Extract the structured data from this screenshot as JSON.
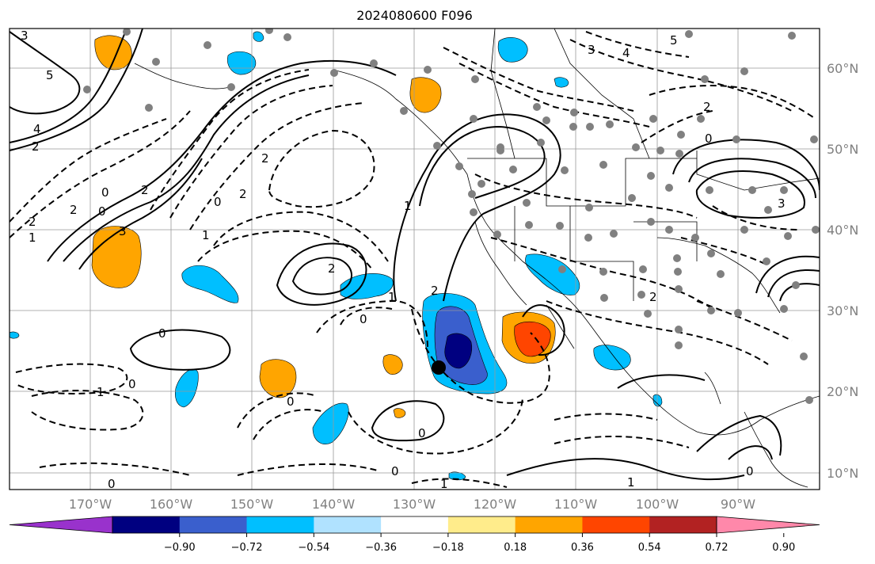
{
  "title": "2024080600 F096",
  "latitudes": [
    "60°N",
    "50°N",
    "40°N",
    "30°N",
    "20°N",
    "10°N"
  ],
  "longitudes": [
    "170°W",
    "160°W",
    "150°W",
    "140°W",
    "130°W",
    "120°W",
    "110°W",
    "100°W",
    "90°W"
  ],
  "colorbar": {
    "colors": [
      "#9932cc",
      "#000080",
      "#3a5fcd",
      "#00bfff",
      "#b0e2ff",
      "#ffffff",
      "#ffec8b",
      "#ffa500",
      "#ff4500",
      "#b22222",
      "#ff88aa"
    ],
    "tick_labels": [
      "−0.90",
      "−0.72",
      "−0.54",
      "−0.36",
      "−0.18",
      "0.18",
      "0.36",
      "0.54",
      "0.72",
      "0.90"
    ]
  },
  "contour_labels": [
    {
      "text": "3"
    },
    {
      "text": "5"
    },
    {
      "text": "4"
    },
    {
      "text": "2"
    },
    {
      "text": "0"
    },
    {
      "text": "2"
    },
    {
      "text": "0"
    },
    {
      "text": "1"
    },
    {
      "text": "2"
    },
    {
      "text": "3"
    },
    {
      "text": "2"
    },
    {
      "text": "0"
    },
    {
      "text": "1"
    },
    {
      "text": "2"
    },
    {
      "text": "2"
    },
    {
      "text": "1"
    },
    {
      "text": "0"
    },
    {
      "text": "1"
    },
    {
      "text": "2"
    },
    {
      "text": "0"
    },
    {
      "text": "2"
    },
    {
      "text": "0"
    },
    {
      "text": "1"
    },
    {
      "text": "0"
    },
    {
      "text": "0"
    },
    {
      "text": "0"
    },
    {
      "text": "1"
    },
    {
      "text": "0"
    },
    {
      "text": "3"
    },
    {
      "text": "4"
    },
    {
      "text": "5"
    },
    {
      "text": "2"
    },
    {
      "text": "0"
    },
    {
      "text": "3"
    },
    {
      "text": "1"
    },
    {
      "text": "2"
    },
    {
      "text": "0"
    }
  ],
  "colors": {
    "frame": "#000000",
    "grid": "#999999",
    "tick_text": "#808080",
    "station_dot": "#808080",
    "marker": "#000000"
  }
}
